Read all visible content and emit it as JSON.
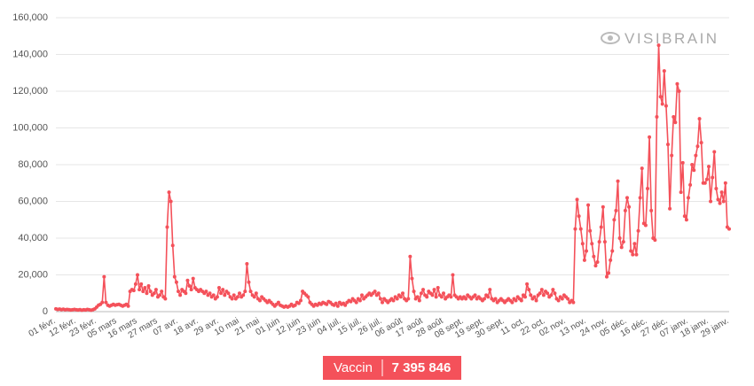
{
  "chart_data": {
    "type": "line",
    "logo": "VISIBRAIN",
    "badge": {
      "label": "Vaccin",
      "total": "7 395 846"
    },
    "ylim": [
      0,
      160000
    ],
    "yticks": [
      0,
      {
        "value": 20000,
        "label": "20,000"
      },
      {
        "value": 40000,
        "label": "40,000"
      },
      {
        "value": 60000,
        "label": "60,000"
      },
      {
        "value": 80000,
        "label": "80,000"
      },
      {
        "value": 100000,
        "label": "100,000"
      },
      {
        "value": 120000,
        "label": "120,000"
      },
      {
        "value": 140000,
        "label": "140,000"
      },
      {
        "value": 160000,
        "label": "160,000"
      }
    ],
    "grid": true,
    "categories": [
      "01 févr.",
      null,
      null,
      null,
      null,
      null,
      null,
      null,
      null,
      null,
      null,
      "12 févr.",
      null,
      null,
      null,
      null,
      null,
      null,
      null,
      null,
      null,
      null,
      "23 févr.",
      null,
      null,
      null,
      null,
      null,
      null,
      null,
      null,
      null,
      null,
      "05 mars",
      null,
      null,
      null,
      null,
      null,
      null,
      null,
      null,
      null,
      null,
      "16 mars",
      null,
      null,
      null,
      null,
      null,
      null,
      null,
      null,
      null,
      null,
      "27 mars",
      null,
      null,
      null,
      null,
      null,
      null,
      null,
      null,
      null,
      null,
      "07 avr.",
      null,
      null,
      null,
      null,
      null,
      null,
      null,
      null,
      null,
      null,
      "18 avr.",
      null,
      null,
      null,
      null,
      null,
      null,
      null,
      null,
      null,
      null,
      "29 avr.",
      null,
      null,
      null,
      null,
      null,
      null,
      null,
      null,
      null,
      null,
      "10 mai",
      null,
      null,
      null,
      null,
      null,
      null,
      null,
      null,
      null,
      null,
      "21 mai",
      null,
      null,
      null,
      null,
      null,
      null,
      null,
      null,
      null,
      null,
      "01 juin",
      null,
      null,
      null,
      null,
      null,
      null,
      null,
      null,
      null,
      null,
      "12 juin",
      null,
      null,
      null,
      null,
      null,
      null,
      null,
      null,
      null,
      null,
      "23 juin",
      null,
      null,
      null,
      null,
      null,
      null,
      null,
      null,
      null,
      null,
      "04 juil.",
      null,
      null,
      null,
      null,
      null,
      null,
      null,
      null,
      null,
      null,
      "15 juil.",
      null,
      null,
      null,
      null,
      null,
      null,
      null,
      null,
      null,
      null,
      "26 juil.",
      null,
      null,
      null,
      null,
      null,
      null,
      null,
      null,
      null,
      null,
      "06 août",
      null,
      null,
      null,
      null,
      null,
      null,
      null,
      null,
      null,
      null,
      "17 août",
      null,
      null,
      null,
      null,
      null,
      null,
      null,
      null,
      null,
      null,
      "28 août",
      null,
      null,
      null,
      null,
      null,
      null,
      null,
      null,
      null,
      null,
      "08 sept.",
      null,
      null,
      null,
      null,
      null,
      null,
      null,
      null,
      null,
      null,
      "19 sept.",
      null,
      null,
      null,
      null,
      null,
      null,
      null,
      null,
      null,
      null,
      "30 sept.",
      null,
      null,
      null,
      null,
      null,
      null,
      null,
      null,
      null,
      null,
      "11 oct.",
      null,
      null,
      null,
      null,
      null,
      null,
      null,
      null,
      null,
      null,
      "22 oct.",
      null,
      null,
      null,
      null,
      null,
      null,
      null,
      null,
      null,
      null,
      "02 nov.",
      null,
      null,
      null,
      null,
      null,
      null,
      null,
      null,
      null,
      null,
      "13 nov.",
      null,
      null,
      null,
      null,
      null,
      null,
      null,
      null,
      null,
      null,
      "24 nov.",
      null,
      null,
      null,
      null,
      null,
      null,
      null,
      null,
      null,
      null,
      "05 déc.",
      null,
      null,
      null,
      null,
      null,
      null,
      null,
      null,
      null,
      null,
      "16 déc.",
      null,
      null,
      null,
      null,
      null,
      null,
      null,
      null,
      null,
      null,
      "27 déc.",
      null,
      null,
      null,
      null,
      null,
      null,
      null,
      null,
      null,
      null,
      "07 janv.",
      null,
      null,
      null,
      null,
      null,
      null,
      null,
      null,
      null,
      null,
      "18 janv.",
      null,
      null,
      null,
      null,
      null,
      null,
      null,
      null,
      null,
      null,
      "29 janv."
    ],
    "series": [
      {
        "color": "#f4515a",
        "values": [
          1500,
          1200,
          1400,
          1100,
          1300,
          1000,
          1200,
          1100,
          900,
          1000,
          1200,
          1000,
          900,
          1100,
          800,
          1000,
          900,
          1200,
          1000,
          800,
          1100,
          1500,
          2500,
          3500,
          4000,
          5000,
          19000,
          5000,
          3500,
          3000,
          3500,
          4000,
          3500,
          3800,
          4000,
          3500,
          3000,
          3500,
          4000,
          3000,
          11000,
          12000,
          11500,
          15000,
          20000,
          12000,
          15000,
          11000,
          13000,
          10000,
          14000,
          11000,
          9000,
          10000,
          12000,
          8000,
          9000,
          11000,
          8000,
          7000,
          46000,
          65000,
          60000,
          36000,
          19000,
          16000,
          11000,
          9000,
          12000,
          11000,
          10000,
          17000,
          14000,
          12000,
          18000,
          13000,
          12000,
          11000,
          12000,
          11000,
          10000,
          11000,
          9000,
          10000,
          8000,
          9000,
          7000,
          8000,
          13000,
          10000,
          12000,
          9000,
          11000,
          10000,
          8000,
          7000,
          9000,
          7000,
          8000,
          10000,
          8000,
          9000,
          11000,
          26000,
          16000,
          11000,
          9000,
          8000,
          10000,
          7000,
          6000,
          8000,
          7000,
          6000,
          5000,
          6000,
          5000,
          4000,
          3000,
          4000,
          5000,
          3500,
          3000,
          2500,
          3000,
          2500,
          3000,
          4000,
          3000,
          3500,
          5000,
          4500,
          6000,
          11000,
          10000,
          9000,
          8000,
          5000,
          4000,
          3000,
          4000,
          3500,
          4500,
          4000,
          5000,
          4500,
          4000,
          5500,
          5000,
          4000,
          3500,
          4500,
          3000,
          5000,
          4000,
          4500,
          3500,
          5000,
          6000,
          5500,
          7000,
          6000,
          5000,
          7000,
          6000,
          9000,
          7000,
          8000,
          9000,
          10000,
          9000,
          10000,
          11000,
          9000,
          10000,
          7000,
          5000,
          7000,
          6000,
          5000,
          6000,
          7000,
          6000,
          8000,
          7000,
          9000,
          8000,
          10000,
          7000,
          6000,
          7000,
          30000,
          18000,
          11000,
          7000,
          8000,
          6000,
          10000,
          12000,
          9000,
          8000,
          11000,
          10000,
          9000,
          12000,
          8000,
          13000,
          9000,
          8000,
          10000,
          7000,
          8000,
          9000,
          8000,
          20000,
          9000,
          8000,
          7000,
          8000,
          7000,
          8000,
          7000,
          9000,
          8000,
          7000,
          8000,
          9000,
          7000,
          8000,
          7000,
          6000,
          7000,
          9000,
          8000,
          12000,
          7000,
          6000,
          7000,
          5000,
          6000,
          7000,
          6000,
          5000,
          6000,
          7000,
          6000,
          5000,
          7000,
          6000,
          8000,
          7000,
          6000,
          9000,
          8000,
          15000,
          12000,
          9000,
          7000,
          8000,
          6000,
          9000,
          10000,
          12000,
          9000,
          11000,
          10000,
          8000,
          9000,
          12000,
          10000,
          7000,
          6000,
          8000,
          7000,
          9000,
          8000,
          7000,
          5000,
          6000,
          5000,
          45000,
          61000,
          52000,
          45000,
          37000,
          28000,
          33000,
          58000,
          44000,
          37000,
          30000,
          25000,
          27000,
          38000,
          46000,
          57000,
          38000,
          19000,
          21000,
          28000,
          33000,
          50000,
          55000,
          71000,
          40000,
          35000,
          38000,
          55000,
          62000,
          57000,
          33000,
          31000,
          37000,
          31000,
          44000,
          62000,
          78000,
          48000,
          47000,
          67000,
          95000,
          55000,
          40000,
          39000,
          106000,
          145000,
          117000,
          113000,
          131000,
          112000,
          91000,
          56000,
          85000,
          106000,
          103000,
          124000,
          120000,
          65000,
          81000,
          52000,
          50000,
          62000,
          69000,
          80000,
          77000,
          85000,
          90000,
          105000,
          92000,
          70000,
          70000,
          72000,
          79000,
          60000,
          73000,
          87000,
          67000,
          61000,
          59000,
          65000,
          60000,
          70000,
          46000,
          45000
        ]
      }
    ]
  }
}
